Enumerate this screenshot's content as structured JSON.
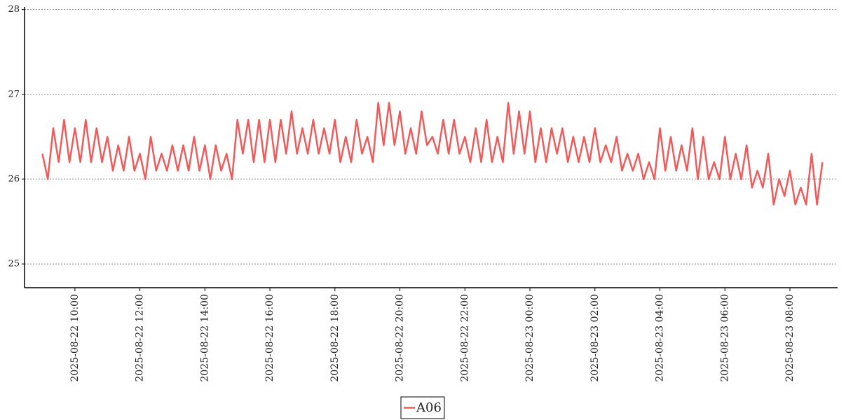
{
  "chart_data": {
    "type": "line",
    "x": [
      "2025-08-22 09:00",
      "2025-08-22 09:10",
      "2025-08-22 09:20",
      "2025-08-22 09:30",
      "2025-08-22 09:40",
      "2025-08-22 09:50",
      "2025-08-22 10:00",
      "2025-08-22 10:10",
      "2025-08-22 10:20",
      "2025-08-22 10:30",
      "2025-08-22 10:40",
      "2025-08-22 10:50",
      "2025-08-22 11:00",
      "2025-08-22 11:10",
      "2025-08-22 11:20",
      "2025-08-22 11:30",
      "2025-08-22 11:40",
      "2025-08-22 11:50",
      "2025-08-22 12:00",
      "2025-08-22 12:10",
      "2025-08-22 12:20",
      "2025-08-22 12:30",
      "2025-08-22 12:40",
      "2025-08-22 12:50",
      "2025-08-22 13:00",
      "2025-08-22 13:10",
      "2025-08-22 13:20",
      "2025-08-22 13:30",
      "2025-08-22 13:40",
      "2025-08-22 13:50",
      "2025-08-22 14:00",
      "2025-08-22 14:10",
      "2025-08-22 14:20",
      "2025-08-22 14:30",
      "2025-08-22 14:40",
      "2025-08-22 14:50",
      "2025-08-22 15:00",
      "2025-08-22 15:10",
      "2025-08-22 15:20",
      "2025-08-22 15:30",
      "2025-08-22 15:40",
      "2025-08-22 15:50",
      "2025-08-22 16:00",
      "2025-08-22 16:10",
      "2025-08-22 16:20",
      "2025-08-22 16:30",
      "2025-08-22 16:40",
      "2025-08-22 16:50",
      "2025-08-22 17:00",
      "2025-08-22 17:10",
      "2025-08-22 17:20",
      "2025-08-22 17:30",
      "2025-08-22 17:40",
      "2025-08-22 17:50",
      "2025-08-22 18:00",
      "2025-08-22 18:10",
      "2025-08-22 18:20",
      "2025-08-22 18:30",
      "2025-08-22 18:40",
      "2025-08-22 18:50",
      "2025-08-22 19:00",
      "2025-08-22 19:10",
      "2025-08-22 19:20",
      "2025-08-22 19:30",
      "2025-08-22 19:40",
      "2025-08-22 19:50",
      "2025-08-22 20:00",
      "2025-08-22 20:10",
      "2025-08-22 20:20",
      "2025-08-22 20:30",
      "2025-08-22 20:40",
      "2025-08-22 20:50",
      "2025-08-22 21:00",
      "2025-08-22 21:10",
      "2025-08-22 21:20",
      "2025-08-22 21:30",
      "2025-08-22 21:40",
      "2025-08-22 21:50",
      "2025-08-22 22:00",
      "2025-08-22 22:10",
      "2025-08-22 22:20",
      "2025-08-22 22:30",
      "2025-08-22 22:40",
      "2025-08-22 22:50",
      "2025-08-22 23:00",
      "2025-08-22 23:10",
      "2025-08-22 23:20",
      "2025-08-22 23:30",
      "2025-08-22 23:40",
      "2025-08-22 23:50",
      "2025-08-23 00:00",
      "2025-08-23 00:10",
      "2025-08-23 00:20",
      "2025-08-23 00:30",
      "2025-08-23 00:40",
      "2025-08-23 00:50",
      "2025-08-23 01:00",
      "2025-08-23 01:10",
      "2025-08-23 01:20",
      "2025-08-23 01:30",
      "2025-08-23 01:40",
      "2025-08-23 01:50",
      "2025-08-23 02:00",
      "2025-08-23 02:10",
      "2025-08-23 02:20",
      "2025-08-23 02:30",
      "2025-08-23 02:40",
      "2025-08-23 02:50",
      "2025-08-23 03:00",
      "2025-08-23 03:10",
      "2025-08-23 03:20",
      "2025-08-23 03:30",
      "2025-08-23 03:40",
      "2025-08-23 03:50",
      "2025-08-23 04:00",
      "2025-08-23 04:10",
      "2025-08-23 04:20",
      "2025-08-23 04:30",
      "2025-08-23 04:40",
      "2025-08-23 04:50",
      "2025-08-23 05:00",
      "2025-08-23 05:10",
      "2025-08-23 05:20",
      "2025-08-23 05:30",
      "2025-08-23 05:40",
      "2025-08-23 05:50",
      "2025-08-23 06:00",
      "2025-08-23 06:10",
      "2025-08-23 06:20",
      "2025-08-23 06:30",
      "2025-08-23 06:40",
      "2025-08-23 06:50",
      "2025-08-23 07:00",
      "2025-08-23 07:10",
      "2025-08-23 07:20",
      "2025-08-23 07:30",
      "2025-08-23 07:40",
      "2025-08-23 07:50",
      "2025-08-23 08:00",
      "2025-08-23 08:10",
      "2025-08-23 08:20",
      "2025-08-23 08:30",
      "2025-08-23 08:40",
      "2025-08-23 08:50",
      "2025-08-23 09:00"
    ],
    "series": [
      {
        "name": "A06",
        "color": "#f05a5a",
        "values": [
          26.3,
          26.0,
          26.6,
          26.2,
          26.7,
          26.2,
          26.6,
          26.2,
          26.7,
          26.2,
          26.6,
          26.2,
          26.5,
          26.1,
          26.4,
          26.1,
          26.5,
          26.1,
          26.3,
          26.0,
          26.5,
          26.1,
          26.3,
          26.1,
          26.4,
          26.1,
          26.4,
          26.1,
          26.5,
          26.1,
          26.4,
          26.0,
          26.4,
          26.1,
          26.3,
          26.0,
          26.7,
          26.3,
          26.7,
          26.2,
          26.7,
          26.2,
          26.7,
          26.2,
          26.7,
          26.3,
          26.8,
          26.3,
          26.6,
          26.3,
          26.7,
          26.3,
          26.6,
          26.3,
          26.7,
          26.2,
          26.5,
          26.2,
          26.7,
          26.3,
          26.5,
          26.2,
          26.9,
          26.4,
          26.9,
          26.4,
          26.8,
          26.3,
          26.6,
          26.3,
          26.8,
          26.4,
          26.5,
          26.3,
          26.7,
          26.3,
          26.7,
          26.3,
          26.5,
          26.2,
          26.6,
          26.2,
          26.7,
          26.2,
          26.5,
          26.2,
          26.9,
          26.3,
          26.8,
          26.3,
          26.8,
          26.2,
          26.6,
          26.2,
          26.6,
          26.3,
          26.6,
          26.2,
          26.5,
          26.2,
          26.5,
          26.2,
          26.6,
          26.2,
          26.4,
          26.2,
          26.5,
          26.1,
          26.3,
          26.1,
          26.3,
          26.0,
          26.2,
          26.0,
          26.6,
          26.1,
          26.5,
          26.1,
          26.4,
          26.1,
          26.6,
          26.0,
          26.5,
          26.0,
          26.2,
          26.0,
          26.5,
          26.0,
          26.3,
          26.0,
          26.4,
          25.9,
          26.1,
          25.9,
          26.3,
          25.7,
          26.0,
          25.8,
          26.1,
          25.7,
          25.9,
          25.7,
          26.3,
          25.7,
          26.2
        ]
      }
    ],
    "xlim": [
      "2025-08-22 08:27",
      "2025-08-23 09:28"
    ],
    "xticks": [
      "2025-08-22 10:00",
      "2025-08-22 12:00",
      "2025-08-22 14:00",
      "2025-08-22 16:00",
      "2025-08-22 18:00",
      "2025-08-22 20:00",
      "2025-08-22 22:00",
      "2025-08-23 00:00",
      "2025-08-23 02:00",
      "2025-08-23 04:00",
      "2025-08-23 06:00",
      "2025-08-23 08:00"
    ],
    "ylim": [
      24.72,
      28.03
    ],
    "yticks": [
      25,
      26,
      27,
      28
    ],
    "grid": true,
    "legend": "bottom"
  }
}
